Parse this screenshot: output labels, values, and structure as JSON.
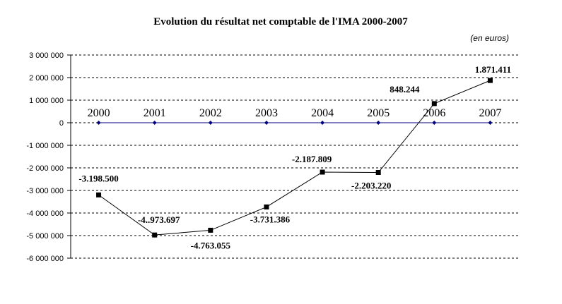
{
  "chart_data": {
    "type": "line",
    "title": "Evolution du résultat net comptable de l'IMA 2000-2007",
    "unit_note": "(en euros)",
    "categories": [
      "2000",
      "2001",
      "2002",
      "2003",
      "2004",
      "2005",
      "2006",
      "2007"
    ],
    "series": [
      {
        "values": [
          -3198500,
          -4973697,
          -4763055,
          -3731386,
          -2187809,
          -2203220,
          848244,
          1871411
        ],
        "labels": [
          "-3.198.500",
          "-4..973.697",
          "-4.763.055",
          "-3.731.386",
          "-2.187.809",
          "-2.203.220",
          "848.244",
          "1.871.411"
        ],
        "color": "#000000"
      }
    ],
    "baseline_series": {
      "values": [
        0,
        0,
        0,
        0,
        0,
        0,
        0,
        0
      ],
      "color": "#000080"
    },
    "ylim": [
      -6000000,
      3000000
    ],
    "yticks": [
      3000000,
      2000000,
      1000000,
      0,
      -1000000,
      -2000000,
      -3000000,
      -4000000,
      -5000000,
      -6000000
    ],
    "ytick_labels": [
      "3 000 000",
      "2 000 000",
      "1 000 000",
      "0",
      "-1 000 000",
      "-2 000 000",
      "-3 000 000",
      "-4 000 000",
      "-5 000 000",
      "-6 000 000"
    ],
    "grid": "horizontal-dashed",
    "legend": "none"
  }
}
